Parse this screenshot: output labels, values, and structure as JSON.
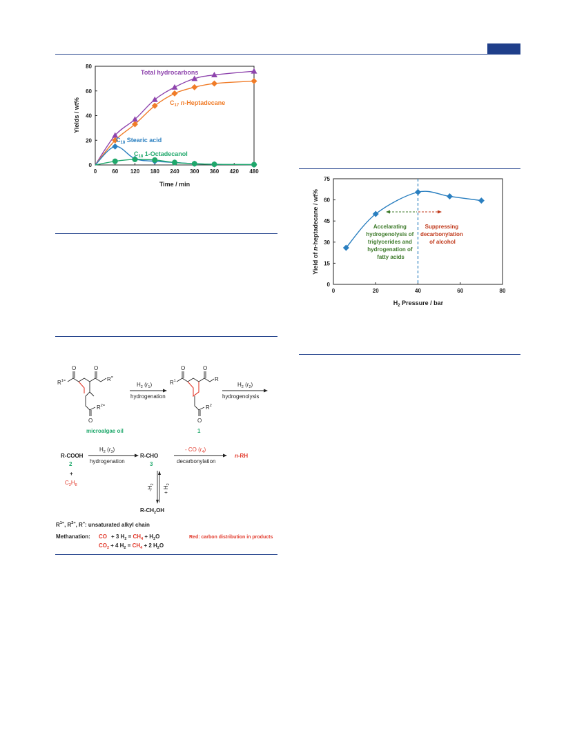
{
  "page": {
    "header_tab_color": "#1f3f8a",
    "rule_color": "#1f3f8a"
  },
  "chart_data": [
    {
      "type": "line",
      "xlabel": "Time / min",
      "ylabel": "Yields / wt%",
      "x_ticks": [
        0,
        60,
        120,
        180,
        240,
        300,
        360,
        420,
        480
      ],
      "y_ticks": [
        0,
        20,
        40,
        60,
        80
      ],
      "xlim": [
        0,
        480
      ],
      "ylim": [
        0,
        80
      ],
      "grid": false,
      "series": [
        {
          "name": "Total hydrocarbons",
          "color": "#8e44ad",
          "marker": "triangle",
          "x": [
            0,
            60,
            120,
            180,
            240,
            300,
            360,
            480
          ],
          "y": [
            0,
            24,
            37,
            53,
            63,
            70,
            73,
            76
          ]
        },
        {
          "name_prefix": "C",
          "name_sub": "17",
          "name_italic": "n",
          "name_rest": "-Heptadecane",
          "color": "#f07c28",
          "marker": "diamond",
          "x": [
            0,
            60,
            120,
            180,
            240,
            300,
            360,
            480
          ],
          "y": [
            0,
            20,
            33,
            48,
            58,
            63,
            66,
            68
          ]
        },
        {
          "name_prefix": "C",
          "name_sub": "18",
          "name_rest": " Stearic acid",
          "color": "#2a7fc0",
          "marker": "diamond",
          "x": [
            0,
            60,
            120,
            180,
            240,
            300,
            360,
            480
          ],
          "y": [
            0,
            15,
            5,
            3,
            2,
            1,
            0.5,
            0.3
          ]
        },
        {
          "name_prefix": "C",
          "name_sub": "18",
          "name_rest": " 1-Octadecanol",
          "color": "#1fa86b",
          "marker": "circle",
          "x": [
            0,
            60,
            120,
            180,
            240,
            300,
            360,
            480
          ],
          "y": [
            0,
            3,
            4.5,
            4,
            2,
            1,
            0.5,
            0.3
          ]
        }
      ]
    },
    {
      "type": "scatter",
      "xlabel_prefix": "H",
      "xlabel_sub": "2",
      "xlabel_rest": " Pressure / bar",
      "ylabel_pre": "Yield of ",
      "ylabel_italic": "n",
      "ylabel_post": "-heptadecane / wt%",
      "x_ticks": [
        0,
        20,
        40,
        60,
        80
      ],
      "y_ticks": [
        0,
        15,
        30,
        45,
        60,
        75
      ],
      "xlim": [
        0,
        80
      ],
      "ylim": [
        0,
        75
      ],
      "grid": false,
      "series": [
        {
          "color": "#2a7fc0",
          "marker": "diamond",
          "x": [
            6,
            20,
            40,
            55,
            70
          ],
          "y": [
            26,
            50,
            65.5,
            62.5,
            59.5
          ]
        }
      ],
      "vline_x": 40,
      "annotations": [
        {
          "text": [
            "Accelarating",
            "hydrogenolysis of",
            "triglycerides and",
            "hydrogenation of",
            "fatty acids"
          ],
          "color": "#3d7a2a"
        },
        {
          "text": [
            "Suppressing",
            "decarbonylation",
            "of alcohol"
          ],
          "color": "#c0391b"
        }
      ]
    }
  ],
  "scheme": {
    "r_top_left": "R",
    "r_top_left_sup": "1=",
    "r_top_right": "R",
    "r_top_right_sup": "=",
    "r_bottom": "R",
    "r_bottom_sup": "2=",
    "microalgae_label": "microalgae oil",
    "h2": "H",
    "h2_sub": "2",
    "r1": "r",
    "r1_sub": "1",
    "r2": "r",
    "r2_sub": "2",
    "r3": "r",
    "r3_sub": "3",
    "r4": "r",
    "r4_sub": "4",
    "hydrogenation": "hydrogenation",
    "hydrogenolysis": "hydrogenolysis",
    "decarbonylation": "decarbonylation",
    "sat_r1": "R",
    "sat_r1_sup": "1",
    "sat_r": "R",
    "sat_r2": "R",
    "sat_r2_sup": "2",
    "compound1": "1",
    "rcooh": "R-COOH",
    "compound2": "2",
    "plus": "+",
    "propane_c": "C",
    "propane_c_sub": "3",
    "propane_h": "H",
    "propane_h_sub": "8",
    "rcho": "R-CHO",
    "compound3": "3",
    "minus_co": "- CO (",
    "nrh_n": "n",
    "nrh": "-RH",
    "minus_h2": "-H",
    "plus_h2": "+ H",
    "rch2oh": "R-CH",
    "rch2oh_sub": "2",
    "rch2oh_tail": "OH",
    "o": "O",
    "legend_r": "R",
    "legend_r1": "1=",
    "legend_r2": "2=",
    "legend_rq": "=",
    "legend_text": ": unsaturated alkyl chain",
    "methanation": "Methanation:",
    "eq1_co": "CO",
    "eq1_mid": "+ 3 H",
    "eq1_ch": "CH",
    "eq1_tail": "+ H",
    "eq2_co": "CO",
    "eq2_mid": "+ 4 H",
    "eq2_ch": "CH",
    "eq2_tail": "+ 2 H",
    "red_note": "Red: carbon distribution in products",
    "green": "#1fa86b",
    "red": "#e2392b"
  }
}
